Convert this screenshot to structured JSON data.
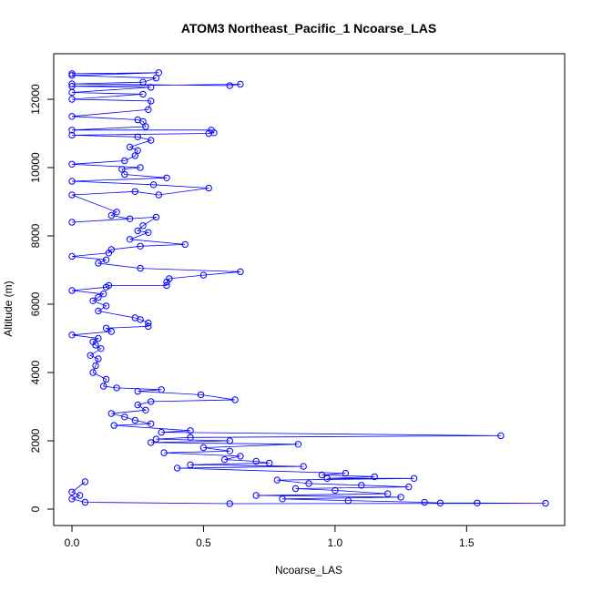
{
  "chart_data": {
    "type": "scatter",
    "title": "ATOM3 Northeast_Pacific_1 Ncoarse_LAS",
    "xlabel": "Ncoarse_LAS",
    "ylabel": "Altitude (m)",
    "xlim": [
      0,
      1.8
    ],
    "ylim": [
      0,
      12800
    ],
    "xticks": [
      0,
      0.5,
      1.0,
      1.5
    ],
    "xtick_labels": [
      "0.0",
      "0.5",
      "1.0",
      "1.5"
    ],
    "yticks": [
      0,
      2000,
      4000,
      6000,
      8000,
      10000,
      12000
    ],
    "ytick_labels": [
      "0",
      "2000",
      "4000",
      "6000",
      "8000",
      "10000",
      "12000"
    ],
    "grid": false,
    "legend": "none",
    "color": "#0000ff",
    "series": [
      {
        "style": "points-and-lines",
        "points": [
          [
            0,
            12750
          ],
          [
            0.33,
            12780
          ],
          [
            0,
            12700
          ],
          [
            0.32,
            12620
          ],
          [
            0.27,
            12500
          ],
          [
            0,
            12450
          ],
          [
            0.6,
            12400
          ],
          [
            0.64,
            12440
          ],
          [
            0,
            12380
          ],
          [
            0.3,
            12350
          ],
          [
            0,
            12200
          ],
          [
            0.27,
            12150
          ],
          [
            0,
            12000
          ],
          [
            0.3,
            11950
          ],
          [
            0.29,
            11700
          ],
          [
            0,
            11500
          ],
          [
            0.25,
            11400
          ],
          [
            0.27,
            11350
          ],
          [
            0.28,
            11200
          ],
          [
            0,
            11100
          ],
          [
            0.53,
            11100
          ],
          [
            0.54,
            11020
          ],
          [
            0.52,
            11000
          ],
          [
            0,
            10950
          ],
          [
            0.25,
            10900
          ],
          [
            0.3,
            10800
          ],
          [
            0.22,
            10600
          ],
          [
            0.25,
            10500
          ],
          [
            0.24,
            10350
          ],
          [
            0.2,
            10200
          ],
          [
            0,
            10100
          ],
          [
            0.26,
            10000
          ],
          [
            0.19,
            9950
          ],
          [
            0.2,
            9800
          ],
          [
            0.36,
            9700
          ],
          [
            0,
            9600
          ],
          [
            0.31,
            9500
          ],
          [
            0.52,
            9400
          ],
          [
            0.33,
            9200
          ],
          [
            0.24,
            9300
          ],
          [
            0,
            9200
          ],
          [
            0.17,
            8700
          ],
          [
            0.15,
            8600
          ],
          [
            0.22,
            8500
          ],
          [
            0,
            8400
          ],
          [
            0.32,
            8550
          ],
          [
            0.27,
            8300
          ],
          [
            0.25,
            8150
          ],
          [
            0.29,
            8100
          ],
          [
            0.22,
            7900
          ],
          [
            0.43,
            7750
          ],
          [
            0.26,
            7700
          ],
          [
            0.15,
            7600
          ],
          [
            0.14,
            7500
          ],
          [
            0,
            7400
          ],
          [
            0.13,
            7300
          ],
          [
            0.1,
            7200
          ],
          [
            0.26,
            7050
          ],
          [
            0.64,
            6950
          ],
          [
            0.5,
            6850
          ],
          [
            0.37,
            6750
          ],
          [
            0.36,
            6650
          ],
          [
            0.36,
            6550
          ],
          [
            0.14,
            6550
          ],
          [
            0.13,
            6500
          ],
          [
            0,
            6400
          ],
          [
            0.12,
            6300
          ],
          [
            0.1,
            6200
          ],
          [
            0.08,
            6100
          ],
          [
            0.13,
            5950
          ],
          [
            0.1,
            5800
          ],
          [
            0.24,
            5600
          ],
          [
            0.26,
            5550
          ],
          [
            0.29,
            5450
          ],
          [
            0.29,
            5350
          ],
          [
            0.13,
            5300
          ],
          [
            0.15,
            5200
          ],
          [
            0,
            5100
          ],
          [
            0.1,
            5000
          ],
          [
            0.08,
            4900
          ],
          [
            0.09,
            4800
          ],
          [
            0.11,
            4700
          ],
          [
            0.07,
            4500
          ],
          [
            0.1,
            4400
          ],
          [
            0.09,
            4200
          ],
          [
            0.08,
            4000
          ],
          [
            0.13,
            3800
          ],
          [
            0.12,
            3600
          ],
          [
            0.17,
            3550
          ],
          [
            0.34,
            3500
          ],
          [
            0.25,
            3450
          ],
          [
            0.49,
            3350
          ],
          [
            0.62,
            3200
          ],
          [
            0.3,
            3150
          ],
          [
            0.25,
            3050
          ],
          [
            0.28,
            2900
          ],
          [
            0.15,
            2800
          ],
          [
            0.2,
            2700
          ],
          [
            0.24,
            2600
          ],
          [
            0.3,
            2500
          ],
          [
            0.16,
            2450
          ],
          [
            0.45,
            2300
          ],
          [
            0.34,
            2250
          ],
          [
            1.63,
            2150
          ],
          [
            0.45,
            2100
          ],
          [
            0.32,
            2050
          ],
          [
            0.6,
            2000
          ],
          [
            0.3,
            1950
          ],
          [
            0.86,
            1900
          ],
          [
            0.5,
            1800
          ],
          [
            0.6,
            1700
          ],
          [
            0.35,
            1650
          ],
          [
            0.64,
            1550
          ],
          [
            0.58,
            1450
          ],
          [
            0.7,
            1400
          ],
          [
            0.75,
            1350
          ],
          [
            0.45,
            1300
          ],
          [
            0.88,
            1250
          ],
          [
            0.4,
            1200
          ],
          [
            1.04,
            1050
          ],
          [
            0.95,
            1000
          ],
          [
            1.15,
            950
          ],
          [
            0.97,
            900
          ],
          [
            1.3,
            900
          ],
          [
            0.78,
            850
          ],
          [
            0.9,
            750
          ],
          [
            1.1,
            700
          ],
          [
            1.28,
            650
          ],
          [
            0.85,
            600
          ],
          [
            1.0,
            550
          ],
          [
            1.2,
            450
          ],
          [
            0.7,
            400
          ],
          [
            1.25,
            350
          ],
          [
            0.8,
            300
          ],
          [
            1.05,
            250
          ],
          [
            1.34,
            200
          ],
          [
            1.4,
            180
          ],
          [
            1.54,
            180
          ],
          [
            1.8,
            170
          ],
          [
            0.6,
            160
          ],
          [
            0.05,
            200
          ],
          [
            0,
            300
          ],
          [
            0.03,
            400
          ],
          [
            0,
            500
          ],
          [
            0.05,
            800
          ]
        ]
      }
    ]
  }
}
